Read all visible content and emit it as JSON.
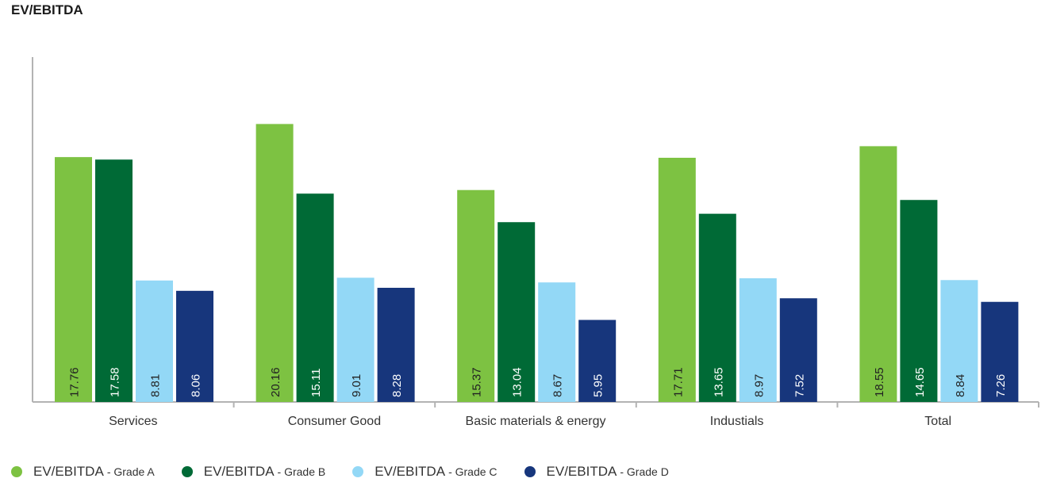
{
  "title": "EV/EBITDA",
  "chart_data": {
    "type": "bar",
    "title": "EV/EBITDA",
    "xlabel": "",
    "ylabel": "",
    "ylim": [
      0,
      23
    ],
    "grid": false,
    "legend_position": "bottom-left",
    "categories": [
      "Services",
      "Consumer Good",
      "Basic materials & energy",
      "Industials",
      "Total"
    ],
    "series": [
      {
        "name": "EV/EBITDA - Grade A",
        "name_main": "EV/EBITDA",
        "name_sub": "- Grade A",
        "color": "#7dc242",
        "label_color": "#222222",
        "values": [
          17.76,
          20.16,
          15.37,
          17.71,
          18.55
        ],
        "labels": [
          "17.76",
          "20.16",
          "15.37",
          "17.71",
          "18.55"
        ]
      },
      {
        "name": "EV/EBITDA - Grade B",
        "name_main": "EV/EBITDA",
        "name_sub": "- Grade B",
        "color": "#006a36",
        "label_color": "#ffffff",
        "values": [
          17.58,
          15.11,
          13.04,
          13.65,
          14.65
        ],
        "labels": [
          "17.58",
          "15.11",
          "13.04",
          "13.65",
          "14.65"
        ]
      },
      {
        "name": "EV/EBITDA - Grade C",
        "name_main": "EV/EBITDA",
        "name_sub": "- Grade C",
        "color": "#93d8f6",
        "label_color": "#222222",
        "values": [
          8.81,
          9.01,
          8.67,
          8.97,
          8.84
        ],
        "labels": [
          "8.81",
          "9.01",
          "8.67",
          "8.97",
          "8.84"
        ]
      },
      {
        "name": "EV/EBITDA - Grade D",
        "name_main": "EV/EBITDA",
        "name_sub": "- Grade D",
        "color": "#17367c",
        "label_color": "#ffffff",
        "values": [
          8.06,
          8.28,
          5.95,
          7.52,
          7.26
        ],
        "labels": [
          "8.06",
          "8.28",
          "5.95",
          "7.52",
          "7.26"
        ]
      }
    ]
  }
}
